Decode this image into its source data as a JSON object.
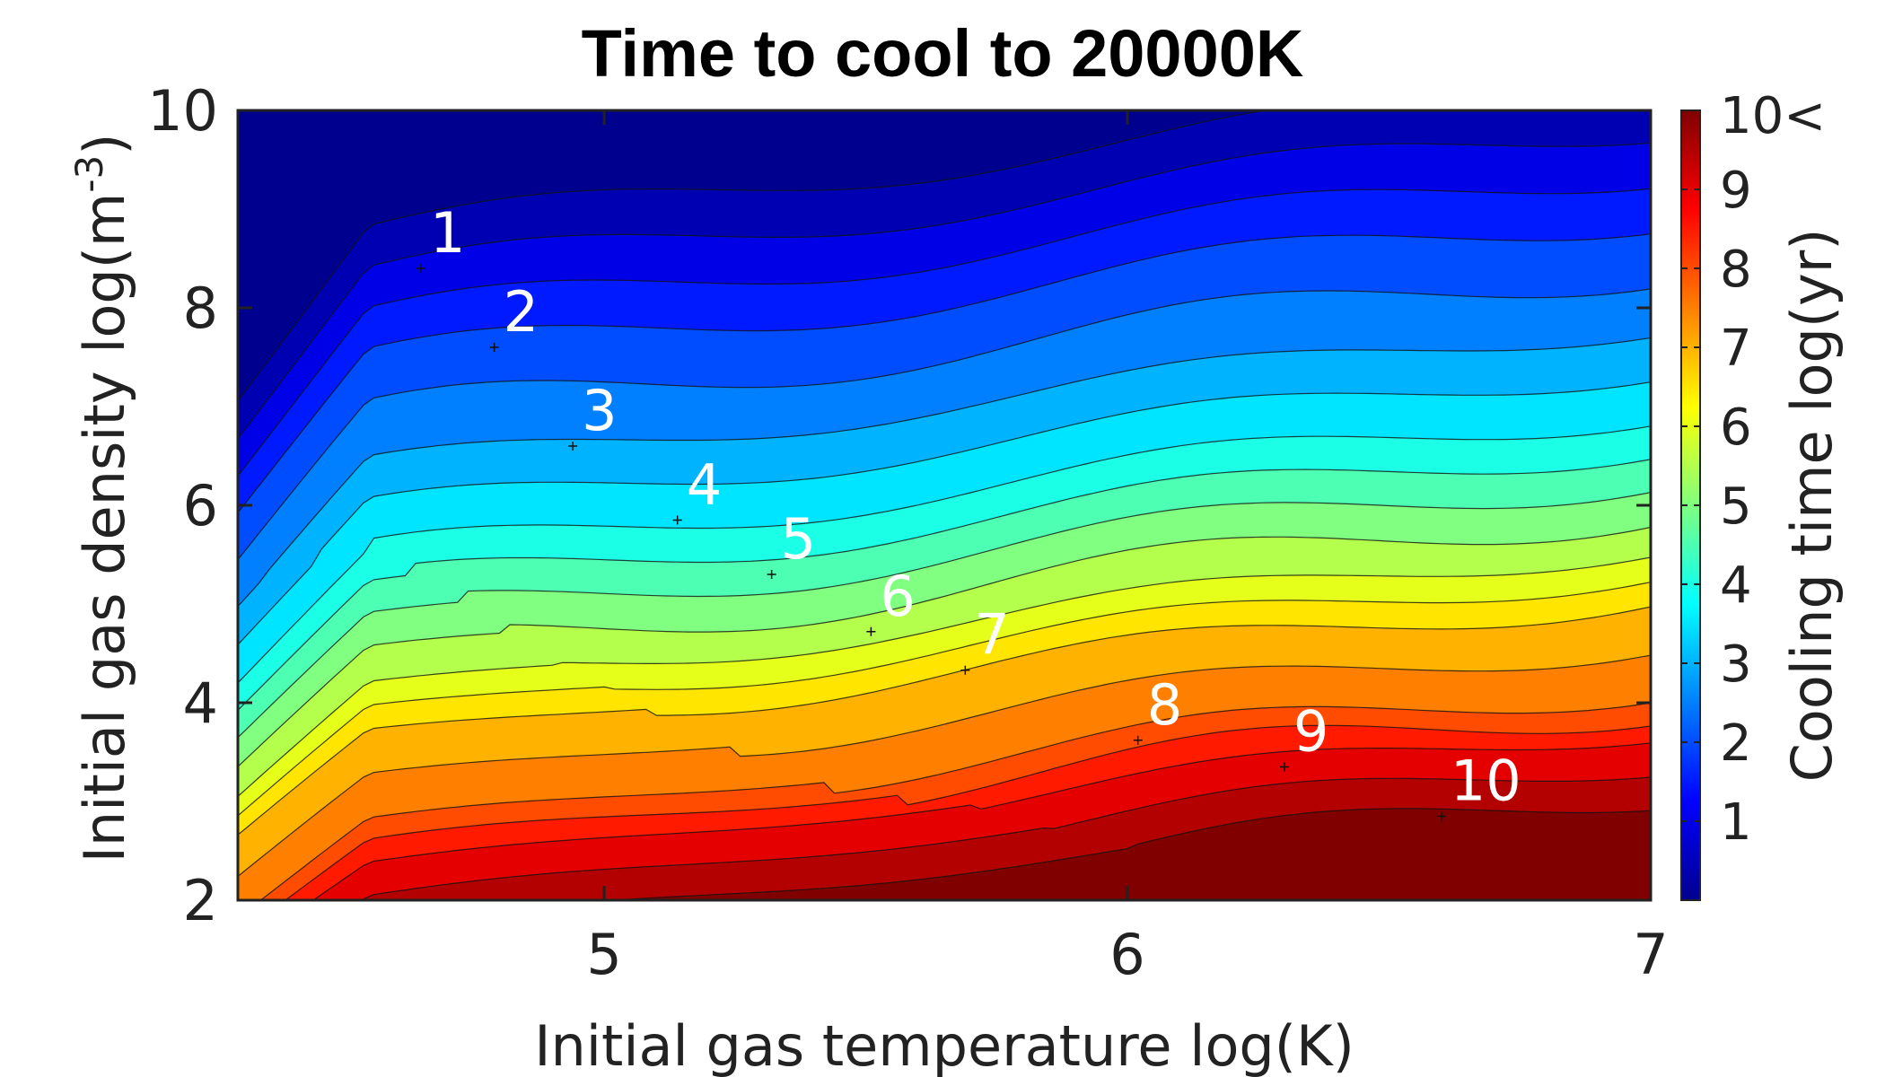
{
  "chart_data": {
    "type": "heatmap",
    "subtype": "filled-contour",
    "title": "Time to cool to 20000K",
    "xlabel": "Initial gas temperature log(K)",
    "ylabel_base": "Initial gas density log(m",
    "ylabel_sup": "-3",
    "ylabel_end": ")",
    "xlim": [
      4.3,
      7
    ],
    "ylim": [
      2,
      10
    ],
    "xticks": [
      "5",
      "6",
      "7"
    ],
    "yticks": [
      "2",
      "4",
      "6",
      "8",
      "10"
    ],
    "colorbar": {
      "label": "Cooling time log(yr)",
      "range": [
        0,
        10
      ],
      "ticks": [
        "1",
        "2",
        "3",
        "4",
        "5",
        "6",
        "7",
        "8",
        "9"
      ],
      "top_label": "10<",
      "colormap": "jet"
    },
    "contour_levels_step": 0.5,
    "contour_labels": [
      {
        "text": "1",
        "x": 4.65,
        "y": 8.4
      },
      {
        "text": "2",
        "x": 4.79,
        "y": 7.6
      },
      {
        "text": "3",
        "x": 4.94,
        "y": 6.6
      },
      {
        "text": "4",
        "x": 5.14,
        "y": 5.85
      },
      {
        "text": "5",
        "x": 5.32,
        "y": 5.3
      },
      {
        "text": "6",
        "x": 5.51,
        "y": 4.72
      },
      {
        "text": "7",
        "x": 5.69,
        "y": 4.33
      },
      {
        "text": "8",
        "x": 6.02,
        "y": 3.62
      },
      {
        "text": "9",
        "x": 6.3,
        "y": 3.35
      },
      {
        "text": "10",
        "x": 6.6,
        "y": 2.85
      }
    ]
  }
}
